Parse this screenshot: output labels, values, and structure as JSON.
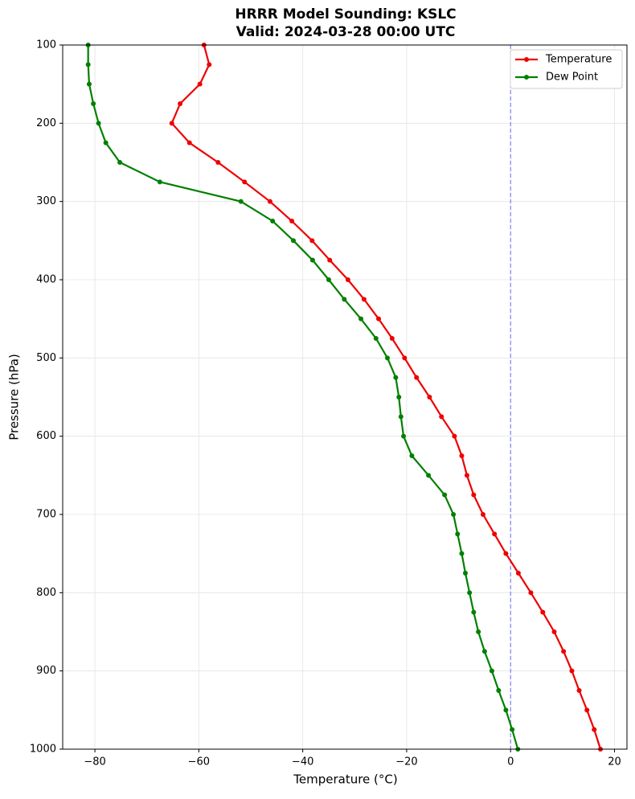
{
  "chart_data": {
    "type": "line",
    "title": "HRRR Model Sounding: KSLC",
    "subtitle": "Valid: 2024-03-28 00:00 UTC",
    "x_label": "Temperature (°C)",
    "y_label": "Pressure (hPa)",
    "y": [
      100,
      125,
      150,
      175,
      200,
      225,
      250,
      275,
      300,
      325,
      350,
      375,
      400,
      425,
      450,
      475,
      500,
      525,
      550,
      575,
      600,
      625,
      650,
      675,
      700,
      725,
      750,
      775,
      800,
      825,
      850,
      875,
      900,
      925,
      950,
      975,
      1000
    ],
    "series": [
      {
        "name": "Temperature",
        "color": "#ee0000",
        "values": [
          -59.0,
          -58.0,
          -59.8,
          -63.6,
          -65.2,
          -61.8,
          -56.3,
          -51.2,
          -46.3,
          -42.1,
          -38.2,
          -34.8,
          -31.3,
          -28.2,
          -25.4,
          -22.8,
          -20.4,
          -18.1,
          -15.6,
          -13.3,
          -10.8,
          -9.4,
          -8.4,
          -7.1,
          -5.3,
          -3.1,
          -0.9,
          1.5,
          3.9,
          6.2,
          8.4,
          10.2,
          11.8,
          13.2,
          14.7,
          16.1,
          17.3
        ]
      },
      {
        "name": "Dew Point",
        "color": "#008000",
        "values": [
          -81.3,
          -81.3,
          -81.1,
          -80.3,
          -79.3,
          -77.9,
          -75.2,
          -67.5,
          -51.9,
          -45.8,
          -41.8,
          -38.1,
          -35.0,
          -32.0,
          -28.8,
          -25.9,
          -23.7,
          -22.1,
          -21.5,
          -21.1,
          -20.6,
          -19.0,
          -15.8,
          -12.7,
          -11.0,
          -10.2,
          -9.4,
          -8.7,
          -7.9,
          -7.1,
          -6.2,
          -5.0,
          -3.6,
          -2.3,
          -0.9,
          0.3,
          1.4
        ]
      }
    ],
    "xlim": [
      -86.2,
      22.4
    ],
    "xticks": [
      {
        "value": -80,
        "label": "−80"
      },
      {
        "value": -60,
        "label": "−60"
      },
      {
        "value": -40,
        "label": "−40"
      },
      {
        "value": -20,
        "label": "−20"
      },
      0,
      20
    ],
    "ylim": [
      1000,
      100
    ],
    "yticks": [
      100,
      200,
      300,
      400,
      500,
      600,
      700,
      800,
      900,
      1000
    ],
    "vline": {
      "value": 0,
      "color": "#6666ff"
    },
    "grid": true,
    "legend": "upper-right"
  }
}
